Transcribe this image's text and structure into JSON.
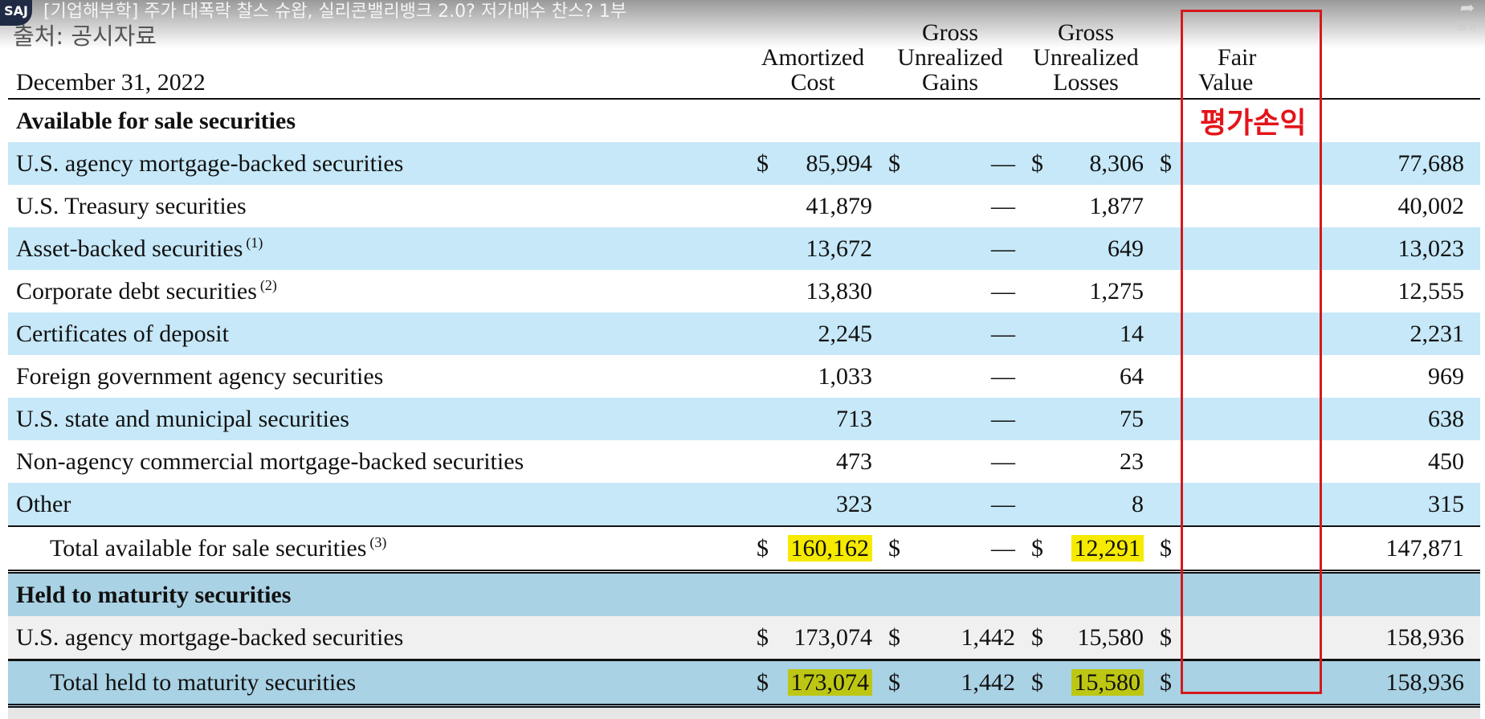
{
  "overlay": {
    "channel_logo": "SAJ",
    "video_title": "[기업해부학] 주가 대폭락 찰스 슈왑, 실리콘밸리뱅크 2.0? 저가매수 찬스? 1부",
    "source_label": "출처: 공시자료",
    "share_label": "공유",
    "icons": {
      "share": "share-icon"
    }
  },
  "header": {
    "date_label": "December 31, 2022",
    "col_amortized": [
      "Amortized",
      "Cost"
    ],
    "col_gains": [
      "Gross",
      "Unrealized",
      "Gains"
    ],
    "col_losses": [
      "Gross",
      "Unrealized",
      "Losses"
    ],
    "col_fair": [
      "Fair",
      "Value"
    ]
  },
  "annotation": {
    "text": "평가손익",
    "color": "#e3141a"
  },
  "colors": {
    "row_shade": "#c6e8f8",
    "held_band": "#a9d2e4",
    "highlight_yellow": "#f5ea00",
    "highlight_olive": "#bdc713",
    "annotation_box": "#d4191c"
  },
  "afs": {
    "section_label": "Available for sale securities",
    "rows": [
      {
        "label": "U.S. agency mortgage-backed securities",
        "note": "",
        "cur1": "$",
        "amortized": "85,994",
        "cur2": "$",
        "gains": "—",
        "cur3": "$",
        "losses": "8,306",
        "cur4": "$",
        "fair": "77,688"
      },
      {
        "label": "U.S. Treasury securities",
        "note": "",
        "cur1": "",
        "amortized": "41,879",
        "cur2": "",
        "gains": "—",
        "cur3": "",
        "losses": "1,877",
        "cur4": "",
        "fair": "40,002"
      },
      {
        "label": "Asset-backed securities",
        "note": "(1)",
        "cur1": "",
        "amortized": "13,672",
        "cur2": "",
        "gains": "—",
        "cur3": "",
        "losses": "649",
        "cur4": "",
        "fair": "13,023"
      },
      {
        "label": "Corporate debt securities",
        "note": "(2)",
        "cur1": "",
        "amortized": "13,830",
        "cur2": "",
        "gains": "—",
        "cur3": "",
        "losses": "1,275",
        "cur4": "",
        "fair": "12,555"
      },
      {
        "label": "Certificates of deposit",
        "note": "",
        "cur1": "",
        "amortized": "2,245",
        "cur2": "",
        "gains": "—",
        "cur3": "",
        "losses": "14",
        "cur4": "",
        "fair": "2,231"
      },
      {
        "label": "Foreign government agency securities",
        "note": "",
        "cur1": "",
        "amortized": "1,033",
        "cur2": "",
        "gains": "—",
        "cur3": "",
        "losses": "64",
        "cur4": "",
        "fair": "969"
      },
      {
        "label": "U.S. state and municipal securities",
        "note": "",
        "cur1": "",
        "amortized": "713",
        "cur2": "",
        "gains": "—",
        "cur3": "",
        "losses": "75",
        "cur4": "",
        "fair": "638"
      },
      {
        "label": "Non-agency commercial mortgage-backed securities",
        "note": "",
        "cur1": "",
        "amortized": "473",
        "cur2": "",
        "gains": "—",
        "cur3": "",
        "losses": "23",
        "cur4": "",
        "fair": "450"
      },
      {
        "label": "Other",
        "note": "",
        "cur1": "",
        "amortized": "323",
        "cur2": "",
        "gains": "—",
        "cur3": "",
        "losses": "8",
        "cur4": "",
        "fair": "315"
      }
    ],
    "total": {
      "label": "Total available for sale securities",
      "note": "(3)",
      "cur1": "$",
      "amortized": "160,162",
      "cur2": "$",
      "gains": "—",
      "cur3": "$",
      "losses": "12,291",
      "cur4": "$",
      "fair": "147,871"
    }
  },
  "htm": {
    "section_label": "Held to maturity securities",
    "row": {
      "label": "U.S. agency mortgage-backed securities",
      "cur1": "$",
      "amortized": "173,074",
      "cur2": "$",
      "gains": "1,442",
      "cur3": "$",
      "losses": "15,580",
      "cur4": "$",
      "fair": "158,936"
    },
    "total": {
      "label": "Total held to maturity securities",
      "cur1": "$",
      "amortized": "173,074",
      "cur2": "$",
      "gains": "1,442",
      "cur3": "$",
      "losses": "15,580",
      "cur4": "$",
      "fair": "158,936"
    }
  }
}
